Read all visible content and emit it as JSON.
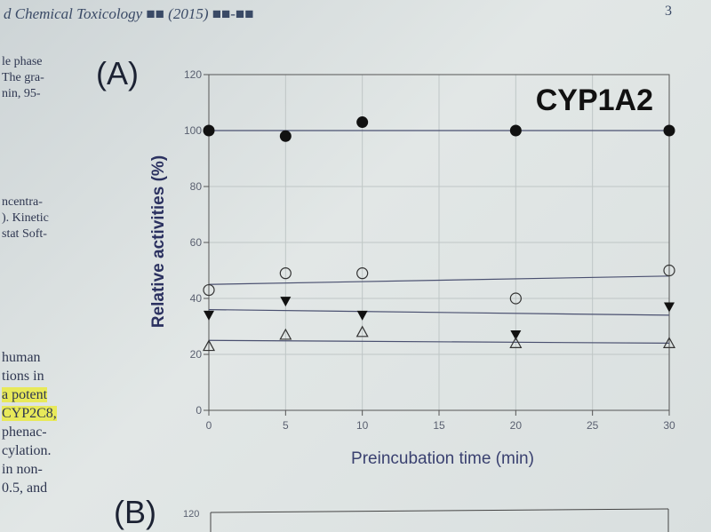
{
  "header": {
    "journal": "d Chemical Toxicology ■■ (2015) ■■-■■",
    "page": "3"
  },
  "left_column": {
    "block1": [
      "le phase",
      "The gra-",
      "nin, 95-"
    ],
    "block2": [
      "ncentra-",
      "). Kinetic",
      "stat Soft-"
    ],
    "block3": [
      "human",
      "tions in",
      "a potent",
      "CYP2C8,",
      "phenac-",
      "cylation.",
      "in non-",
      "0.5, and"
    ],
    "highlighted_lines": [
      2,
      3
    ]
  },
  "panels": {
    "a_label": "(A)",
    "b_label": "(B)",
    "b_ytick": "120"
  },
  "chart_data": {
    "type": "scatter",
    "title": "CYP1A2",
    "xlabel": "Preincubation time (min)",
    "ylabel": "Relative activities (%)",
    "xlim": [
      0,
      30
    ],
    "ylim": [
      0,
      120
    ],
    "xticks": [
      "0",
      "5",
      "10",
      "15",
      "20",
      "25",
      "30"
    ],
    "yticks": [
      "0",
      "20",
      "40",
      "60",
      "80",
      "100",
      "120"
    ],
    "grid": true,
    "legend": "none",
    "series": [
      {
        "marker": "filled-circle",
        "x": [
          0,
          5,
          10,
          20,
          30
        ],
        "y": [
          100,
          98,
          103,
          100,
          100
        ],
        "fit": [
          100,
          100
        ]
      },
      {
        "marker": "open-circle",
        "x": [
          0,
          5,
          10,
          20,
          30
        ],
        "y": [
          43,
          49,
          49,
          40,
          50
        ],
        "fit": [
          45,
          48
        ]
      },
      {
        "marker": "filled-triangle-down",
        "x": [
          0,
          5,
          10,
          20,
          30
        ],
        "y": [
          34,
          39,
          34,
          27,
          37
        ],
        "fit": [
          36,
          34
        ]
      },
      {
        "marker": "open-triangle-up",
        "x": [
          0,
          5,
          10,
          20,
          30
        ],
        "y": [
          23,
          27,
          28,
          24,
          24
        ],
        "fit": [
          25,
          24
        ]
      }
    ]
  }
}
